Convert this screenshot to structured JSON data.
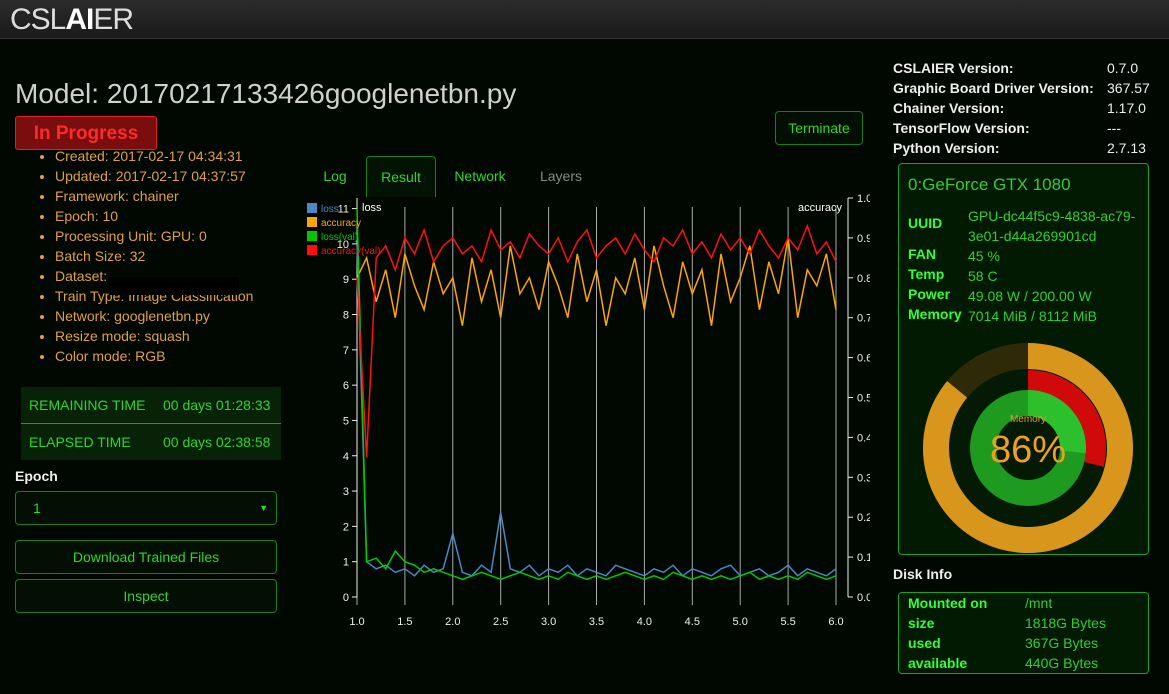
{
  "header": {
    "logo_start": "CSL",
    "logo_bold": "AI",
    "logo_end": "ER"
  },
  "model": {
    "title": "Model: 20170217133426googlenetbn.py",
    "status": "In Progress",
    "terminate": "Terminate"
  },
  "info": [
    "Created: 2017-02-17 04:34:31",
    "Updated: 2017-02-17 04:37:57",
    "Framework: chainer",
    "Epoch: 10",
    "Processing Unit: GPU: 0",
    "Batch Size: 32",
    "Dataset:",
    "Train Type: Image Classification",
    "Network: googlenetbn.py",
    "Resize mode: squash",
    "Color mode: RGB"
  ],
  "timers": [
    {
      "label": "REMAINING TIME",
      "value": "00 days 01:28:33"
    },
    {
      "label": "ELAPSED TIME",
      "value": "00 days 02:38:58"
    }
  ],
  "epoch": {
    "label": "Epoch",
    "selected": "1"
  },
  "buttons": [
    "Download Trained Files",
    "Inspect"
  ],
  "tabs": [
    "Log",
    "Result",
    "Network",
    "Layers"
  ],
  "chart_data": {
    "type": "line",
    "y_label": "loss",
    "y2_label": "accuracy",
    "x": [
      1.0,
      1.1,
      1.2,
      1.3,
      1.4,
      1.5,
      1.6,
      1.7,
      1.8,
      1.9,
      2.0,
      2.1,
      2.2,
      2.3,
      2.4,
      2.5,
      2.6,
      2.7,
      2.8,
      2.9,
      3.0,
      3.1,
      3.2,
      3.3,
      3.4,
      3.5,
      3.6,
      3.7,
      3.8,
      3.9,
      4.0,
      4.1,
      4.2,
      4.3,
      4.4,
      4.5,
      4.6,
      4.7,
      4.8,
      4.9,
      5.0,
      5.1,
      5.2,
      5.3,
      5.4,
      5.5,
      5.6,
      5.7,
      5.8,
      5.9,
      6.0
    ],
    "xlim": [
      1,
      6
    ],
    "xticks": [
      {
        "value": 1,
        "label": "1.0"
      },
      1.5,
      {
        "value": 2,
        "label": "2.0"
      },
      2.5,
      {
        "value": 3,
        "label": "3.0"
      },
      3.5,
      {
        "value": 4,
        "label": "4.0"
      },
      4.5,
      {
        "value": 5,
        "label": "5.0"
      },
      5.5,
      {
        "value": 6,
        "label": "6.0"
      }
    ],
    "ylim": [
      0,
      11.3
    ],
    "yticks": [
      0,
      1,
      2,
      3,
      4,
      5,
      6,
      7,
      8,
      9,
      10,
      11
    ],
    "y2lim": [
      0,
      1
    ],
    "y2ticks": [
      {
        "value": 0,
        "label": "0.0"
      },
      0.1,
      0.2,
      0.3,
      0.4,
      0.5,
      0.6,
      0.7,
      0.8,
      0.9,
      {
        "value": 1,
        "label": "1.0"
      }
    ],
    "grid": true,
    "legend": "top-left",
    "series": [
      {
        "name": "loss",
        "color": "#4a88c8",
        "axis": "y",
        "values": [
          10.0,
          1.0,
          0.8,
          0.9,
          0.7,
          0.8,
          0.6,
          0.9,
          0.7,
          0.8,
          1.8,
          0.7,
          0.6,
          0.9,
          0.7,
          2.4,
          0.8,
          0.7,
          0.9,
          0.6,
          0.8,
          0.7,
          0.9,
          0.6,
          0.8,
          0.7,
          0.6,
          0.9,
          0.8,
          0.7,
          0.6,
          0.8,
          0.7,
          0.9,
          0.6,
          0.8,
          0.7,
          0.6,
          0.8,
          0.9,
          0.6,
          0.7,
          0.8,
          0.6,
          0.7,
          0.9,
          0.6,
          0.8,
          0.7,
          0.6,
          0.8
        ]
      },
      {
        "name": "accuracy",
        "color": "#ffa500",
        "axis": "y2",
        "values": [
          0.8,
          0.85,
          0.74,
          0.82,
          0.7,
          0.86,
          0.78,
          0.72,
          0.84,
          0.76,
          0.8,
          0.68,
          0.85,
          0.74,
          0.82,
          0.7,
          0.88,
          0.76,
          0.8,
          0.72,
          0.84,
          0.78,
          0.7,
          0.86,
          0.74,
          0.82,
          0.68,
          0.8,
          0.76,
          0.85,
          0.72,
          0.88,
          0.78,
          0.7,
          0.84,
          0.76,
          0.82,
          0.68,
          0.86,
          0.74,
          0.8,
          0.88,
          0.72,
          0.84,
          0.76,
          0.9,
          0.7,
          0.82,
          0.78,
          0.86,
          0.72
        ]
      },
      {
        "name": "loss(val)",
        "color": "#00c800",
        "axis": "y",
        "values": [
          11.0,
          1.0,
          1.1,
          0.8,
          1.3,
          1.0,
          0.9,
          0.7,
          0.8,
          0.7,
          0.6,
          0.5,
          0.6,
          0.7,
          0.6,
          0.5,
          0.6,
          0.7,
          0.6,
          0.5,
          0.6,
          0.5,
          0.7,
          0.6,
          0.5,
          0.6,
          0.5,
          0.6,
          0.7,
          0.6,
          0.5,
          0.6,
          0.5,
          0.7,
          0.6,
          0.5,
          0.6,
          0.5,
          0.6,
          0.5,
          0.6,
          0.7,
          0.5,
          0.6,
          0.5,
          0.6,
          0.5,
          0.7,
          0.6,
          0.5,
          0.6
        ]
      },
      {
        "name": "accuracy(val)",
        "color": "#ff1010",
        "axis": "y2",
        "values": [
          0.8,
          0.35,
          0.85,
          0.88,
          0.82,
          0.9,
          0.86,
          0.92,
          0.84,
          0.88,
          0.9,
          0.86,
          0.88,
          0.84,
          0.92,
          0.87,
          0.89,
          0.85,
          0.91,
          0.88,
          0.86,
          0.9,
          0.84,
          0.89,
          0.92,
          0.85,
          0.88,
          0.9,
          0.86,
          0.91,
          0.87,
          0.84,
          0.9,
          0.88,
          0.92,
          0.86,
          0.89,
          0.85,
          0.91,
          0.87,
          0.9,
          0.86,
          0.92,
          0.88,
          0.85,
          0.9,
          0.87,
          0.93,
          0.86,
          0.89,
          0.84
        ]
      }
    ]
  },
  "versions": [
    {
      "label": "CSLAIER Version:",
      "value": "0.7.0"
    },
    {
      "label": "Graphic Board Driver Version:",
      "value": "367.57"
    },
    {
      "label": "Chainer Version:",
      "value": "1.17.0"
    },
    {
      "label": "TensorFlow Version:",
      "value": "---"
    },
    {
      "label": "Python Version:",
      "value": "2.7.13"
    }
  ],
  "gpu": {
    "title": "0:GeForce GTX 1080",
    "rows": [
      {
        "label": "UUID",
        "value": "GPU-dc44f5c9-4838-ac79-3e01-d44a269901cd"
      },
      {
        "label": "FAN",
        "value": "45 %"
      },
      {
        "label": "Temp",
        "value": "58 C"
      },
      {
        "label": "Power",
        "value": "49.08 W / 200.00 W"
      },
      {
        "label": "Memory",
        "value": "7014 MiB / 8112 MiB"
      }
    ],
    "gauge": {
      "label": "Memory",
      "value": 86,
      "value_label": "86%"
    }
  },
  "disk": {
    "title": "Disk Info",
    "rows": [
      {
        "label": "Mounted on",
        "value": "/mnt"
      },
      {
        "label": "size",
        "value": "1818G Bytes"
      },
      {
        "label": "used",
        "value": "367G Bytes"
      },
      {
        "label": "available",
        "value": "440G Bytes"
      }
    ]
  }
}
